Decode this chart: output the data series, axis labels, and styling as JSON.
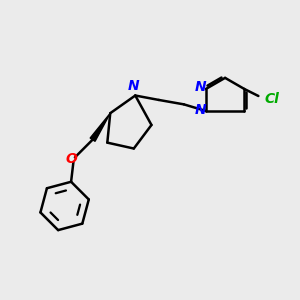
{
  "bg_color": "#ebebeb",
  "bond_color": "#000000",
  "N_color": "#0000ff",
  "O_color": "#ff0000",
  "Cl_color": "#00aa00",
  "line_width": 1.8,
  "font_size": 10,
  "figsize": [
    3.0,
    3.0
  ],
  "dpi": 100,
  "xlim": [
    0,
    10
  ],
  "ylim": [
    0,
    10
  ]
}
